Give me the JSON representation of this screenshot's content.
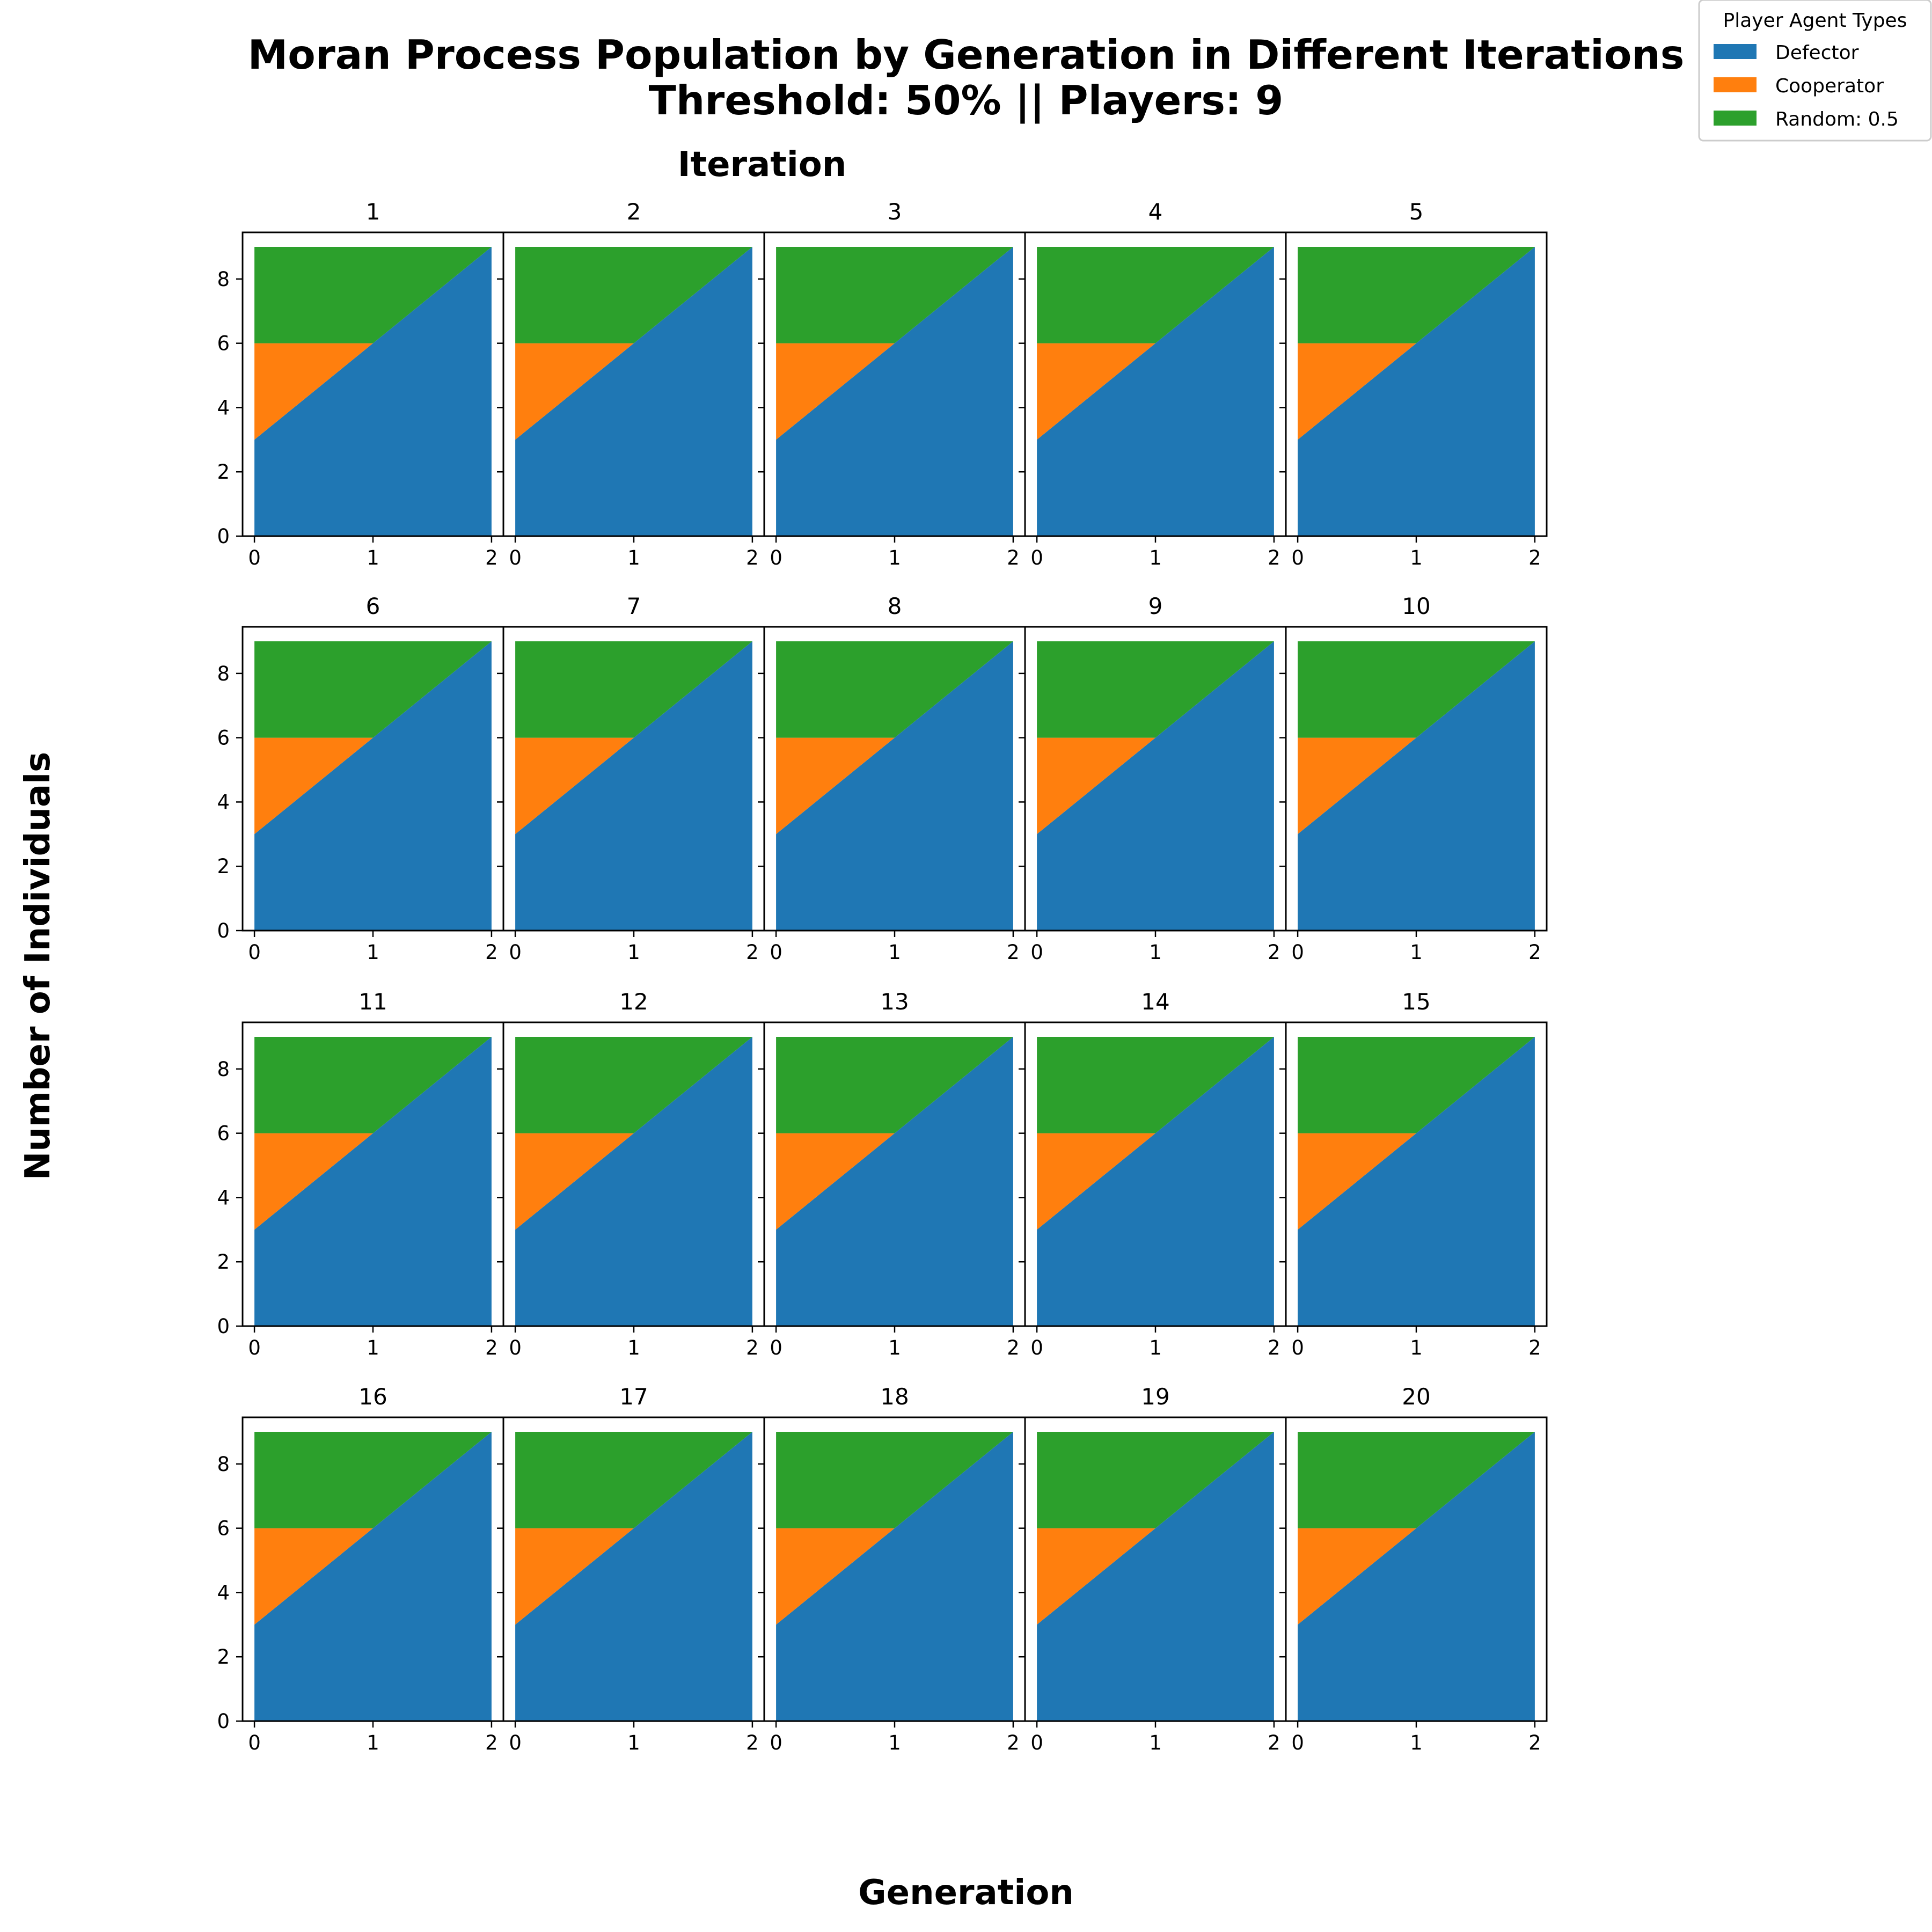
{
  "figure": {
    "title_line1": "Moran Process Population by Generation in Different Iterations",
    "title_line2": "Threshold: 50% || Players: 9",
    "column_header": "Iteration",
    "xlabel": "Generation",
    "ylabel": "Number of Individuals"
  },
  "legend": {
    "title": "Player Agent Types",
    "items": [
      {
        "label": "Defector",
        "color": "#1f77b4"
      },
      {
        "label": "Cooperator",
        "color": "#ff7f0e"
      },
      {
        "label": "Random: 0.5",
        "color": "#2ca02c"
      }
    ]
  },
  "chart_data": {
    "type": "area",
    "stacked": true,
    "layout": {
      "rows": 4,
      "cols": 5
    },
    "x": [
      0,
      1,
      2
    ],
    "xticks": [
      0,
      1,
      2
    ],
    "yticks": [
      0,
      2,
      4,
      6,
      8
    ],
    "ylim": [
      0,
      9
    ],
    "panels": [
      {
        "title": "1",
        "series": [
          {
            "name": "Defector",
            "values": [
              3,
              6,
              9
            ]
          },
          {
            "name": "Cooperator",
            "values": [
              3,
              0,
              0
            ]
          },
          {
            "name": "Random: 0.5",
            "values": [
              3,
              3,
              0
            ]
          }
        ]
      },
      {
        "title": "2",
        "series": [
          {
            "name": "Defector",
            "values": [
              3,
              6,
              9
            ]
          },
          {
            "name": "Cooperator",
            "values": [
              3,
              0,
              0
            ]
          },
          {
            "name": "Random: 0.5",
            "values": [
              3,
              3,
              0
            ]
          }
        ]
      },
      {
        "title": "3",
        "series": [
          {
            "name": "Defector",
            "values": [
              3,
              6,
              9
            ]
          },
          {
            "name": "Cooperator",
            "values": [
              3,
              0,
              0
            ]
          },
          {
            "name": "Random: 0.5",
            "values": [
              3,
              3,
              0
            ]
          }
        ]
      },
      {
        "title": "4",
        "series": [
          {
            "name": "Defector",
            "values": [
              3,
              6,
              9
            ]
          },
          {
            "name": "Cooperator",
            "values": [
              3,
              0,
              0
            ]
          },
          {
            "name": "Random: 0.5",
            "values": [
              3,
              3,
              0
            ]
          }
        ]
      },
      {
        "title": "5",
        "series": [
          {
            "name": "Defector",
            "values": [
              3,
              6,
              9
            ]
          },
          {
            "name": "Cooperator",
            "values": [
              3,
              0,
              0
            ]
          },
          {
            "name": "Random: 0.5",
            "values": [
              3,
              3,
              0
            ]
          }
        ]
      },
      {
        "title": "6",
        "series": [
          {
            "name": "Defector",
            "values": [
              3,
              6,
              9
            ]
          },
          {
            "name": "Cooperator",
            "values": [
              3,
              0,
              0
            ]
          },
          {
            "name": "Random: 0.5",
            "values": [
              3,
              3,
              0
            ]
          }
        ]
      },
      {
        "title": "7",
        "series": [
          {
            "name": "Defector",
            "values": [
              3,
              6,
              9
            ]
          },
          {
            "name": "Cooperator",
            "values": [
              3,
              0,
              0
            ]
          },
          {
            "name": "Random: 0.5",
            "values": [
              3,
              3,
              0
            ]
          }
        ]
      },
      {
        "title": "8",
        "series": [
          {
            "name": "Defector",
            "values": [
              3,
              6,
              9
            ]
          },
          {
            "name": "Cooperator",
            "values": [
              3,
              0,
              0
            ]
          },
          {
            "name": "Random: 0.5",
            "values": [
              3,
              3,
              0
            ]
          }
        ]
      },
      {
        "title": "9",
        "series": [
          {
            "name": "Defector",
            "values": [
              3,
              6,
              9
            ]
          },
          {
            "name": "Cooperator",
            "values": [
              3,
              0,
              0
            ]
          },
          {
            "name": "Random: 0.5",
            "values": [
              3,
              3,
              0
            ]
          }
        ]
      },
      {
        "title": "10",
        "series": [
          {
            "name": "Defector",
            "values": [
              3,
              6,
              9
            ]
          },
          {
            "name": "Cooperator",
            "values": [
              3,
              0,
              0
            ]
          },
          {
            "name": "Random: 0.5",
            "values": [
              3,
              3,
              0
            ]
          }
        ]
      },
      {
        "title": "11",
        "series": [
          {
            "name": "Defector",
            "values": [
              3,
              6,
              9
            ]
          },
          {
            "name": "Cooperator",
            "values": [
              3,
              0,
              0
            ]
          },
          {
            "name": "Random: 0.5",
            "values": [
              3,
              3,
              0
            ]
          }
        ]
      },
      {
        "title": "12",
        "series": [
          {
            "name": "Defector",
            "values": [
              3,
              6,
              9
            ]
          },
          {
            "name": "Cooperator",
            "values": [
              3,
              0,
              0
            ]
          },
          {
            "name": "Random: 0.5",
            "values": [
              3,
              3,
              0
            ]
          }
        ]
      },
      {
        "title": "13",
        "series": [
          {
            "name": "Defector",
            "values": [
              3,
              6,
              9
            ]
          },
          {
            "name": "Cooperator",
            "values": [
              3,
              0,
              0
            ]
          },
          {
            "name": "Random: 0.5",
            "values": [
              3,
              3,
              0
            ]
          }
        ]
      },
      {
        "title": "14",
        "series": [
          {
            "name": "Defector",
            "values": [
              3,
              6,
              9
            ]
          },
          {
            "name": "Cooperator",
            "values": [
              3,
              0,
              0
            ]
          },
          {
            "name": "Random: 0.5",
            "values": [
              3,
              3,
              0
            ]
          }
        ]
      },
      {
        "title": "15",
        "series": [
          {
            "name": "Defector",
            "values": [
              3,
              6,
              9
            ]
          },
          {
            "name": "Cooperator",
            "values": [
              3,
              0,
              0
            ]
          },
          {
            "name": "Random: 0.5",
            "values": [
              3,
              3,
              0
            ]
          }
        ]
      },
      {
        "title": "16",
        "series": [
          {
            "name": "Defector",
            "values": [
              3,
              6,
              9
            ]
          },
          {
            "name": "Cooperator",
            "values": [
              3,
              0,
              0
            ]
          },
          {
            "name": "Random: 0.5",
            "values": [
              3,
              3,
              0
            ]
          }
        ]
      },
      {
        "title": "17",
        "series": [
          {
            "name": "Defector",
            "values": [
              3,
              6,
              9
            ]
          },
          {
            "name": "Cooperator",
            "values": [
              3,
              0,
              0
            ]
          },
          {
            "name": "Random: 0.5",
            "values": [
              3,
              3,
              0
            ]
          }
        ]
      },
      {
        "title": "18",
        "series": [
          {
            "name": "Defector",
            "values": [
              3,
              6,
              9
            ]
          },
          {
            "name": "Cooperator",
            "values": [
              3,
              0,
              0
            ]
          },
          {
            "name": "Random: 0.5",
            "values": [
              3,
              3,
              0
            ]
          }
        ]
      },
      {
        "title": "19",
        "series": [
          {
            "name": "Defector",
            "values": [
              3,
              6,
              9
            ]
          },
          {
            "name": "Cooperator",
            "values": [
              3,
              0,
              0
            ]
          },
          {
            "name": "Random: 0.5",
            "values": [
              3,
              3,
              0
            ]
          }
        ]
      },
      {
        "title": "20",
        "series": [
          {
            "name": "Defector",
            "values": [
              3,
              6,
              9
            ]
          },
          {
            "name": "Cooperator",
            "values": [
              3,
              0,
              0
            ]
          },
          {
            "name": "Random: 0.5",
            "values": [
              3,
              3,
              0
            ]
          }
        ]
      }
    ]
  }
}
